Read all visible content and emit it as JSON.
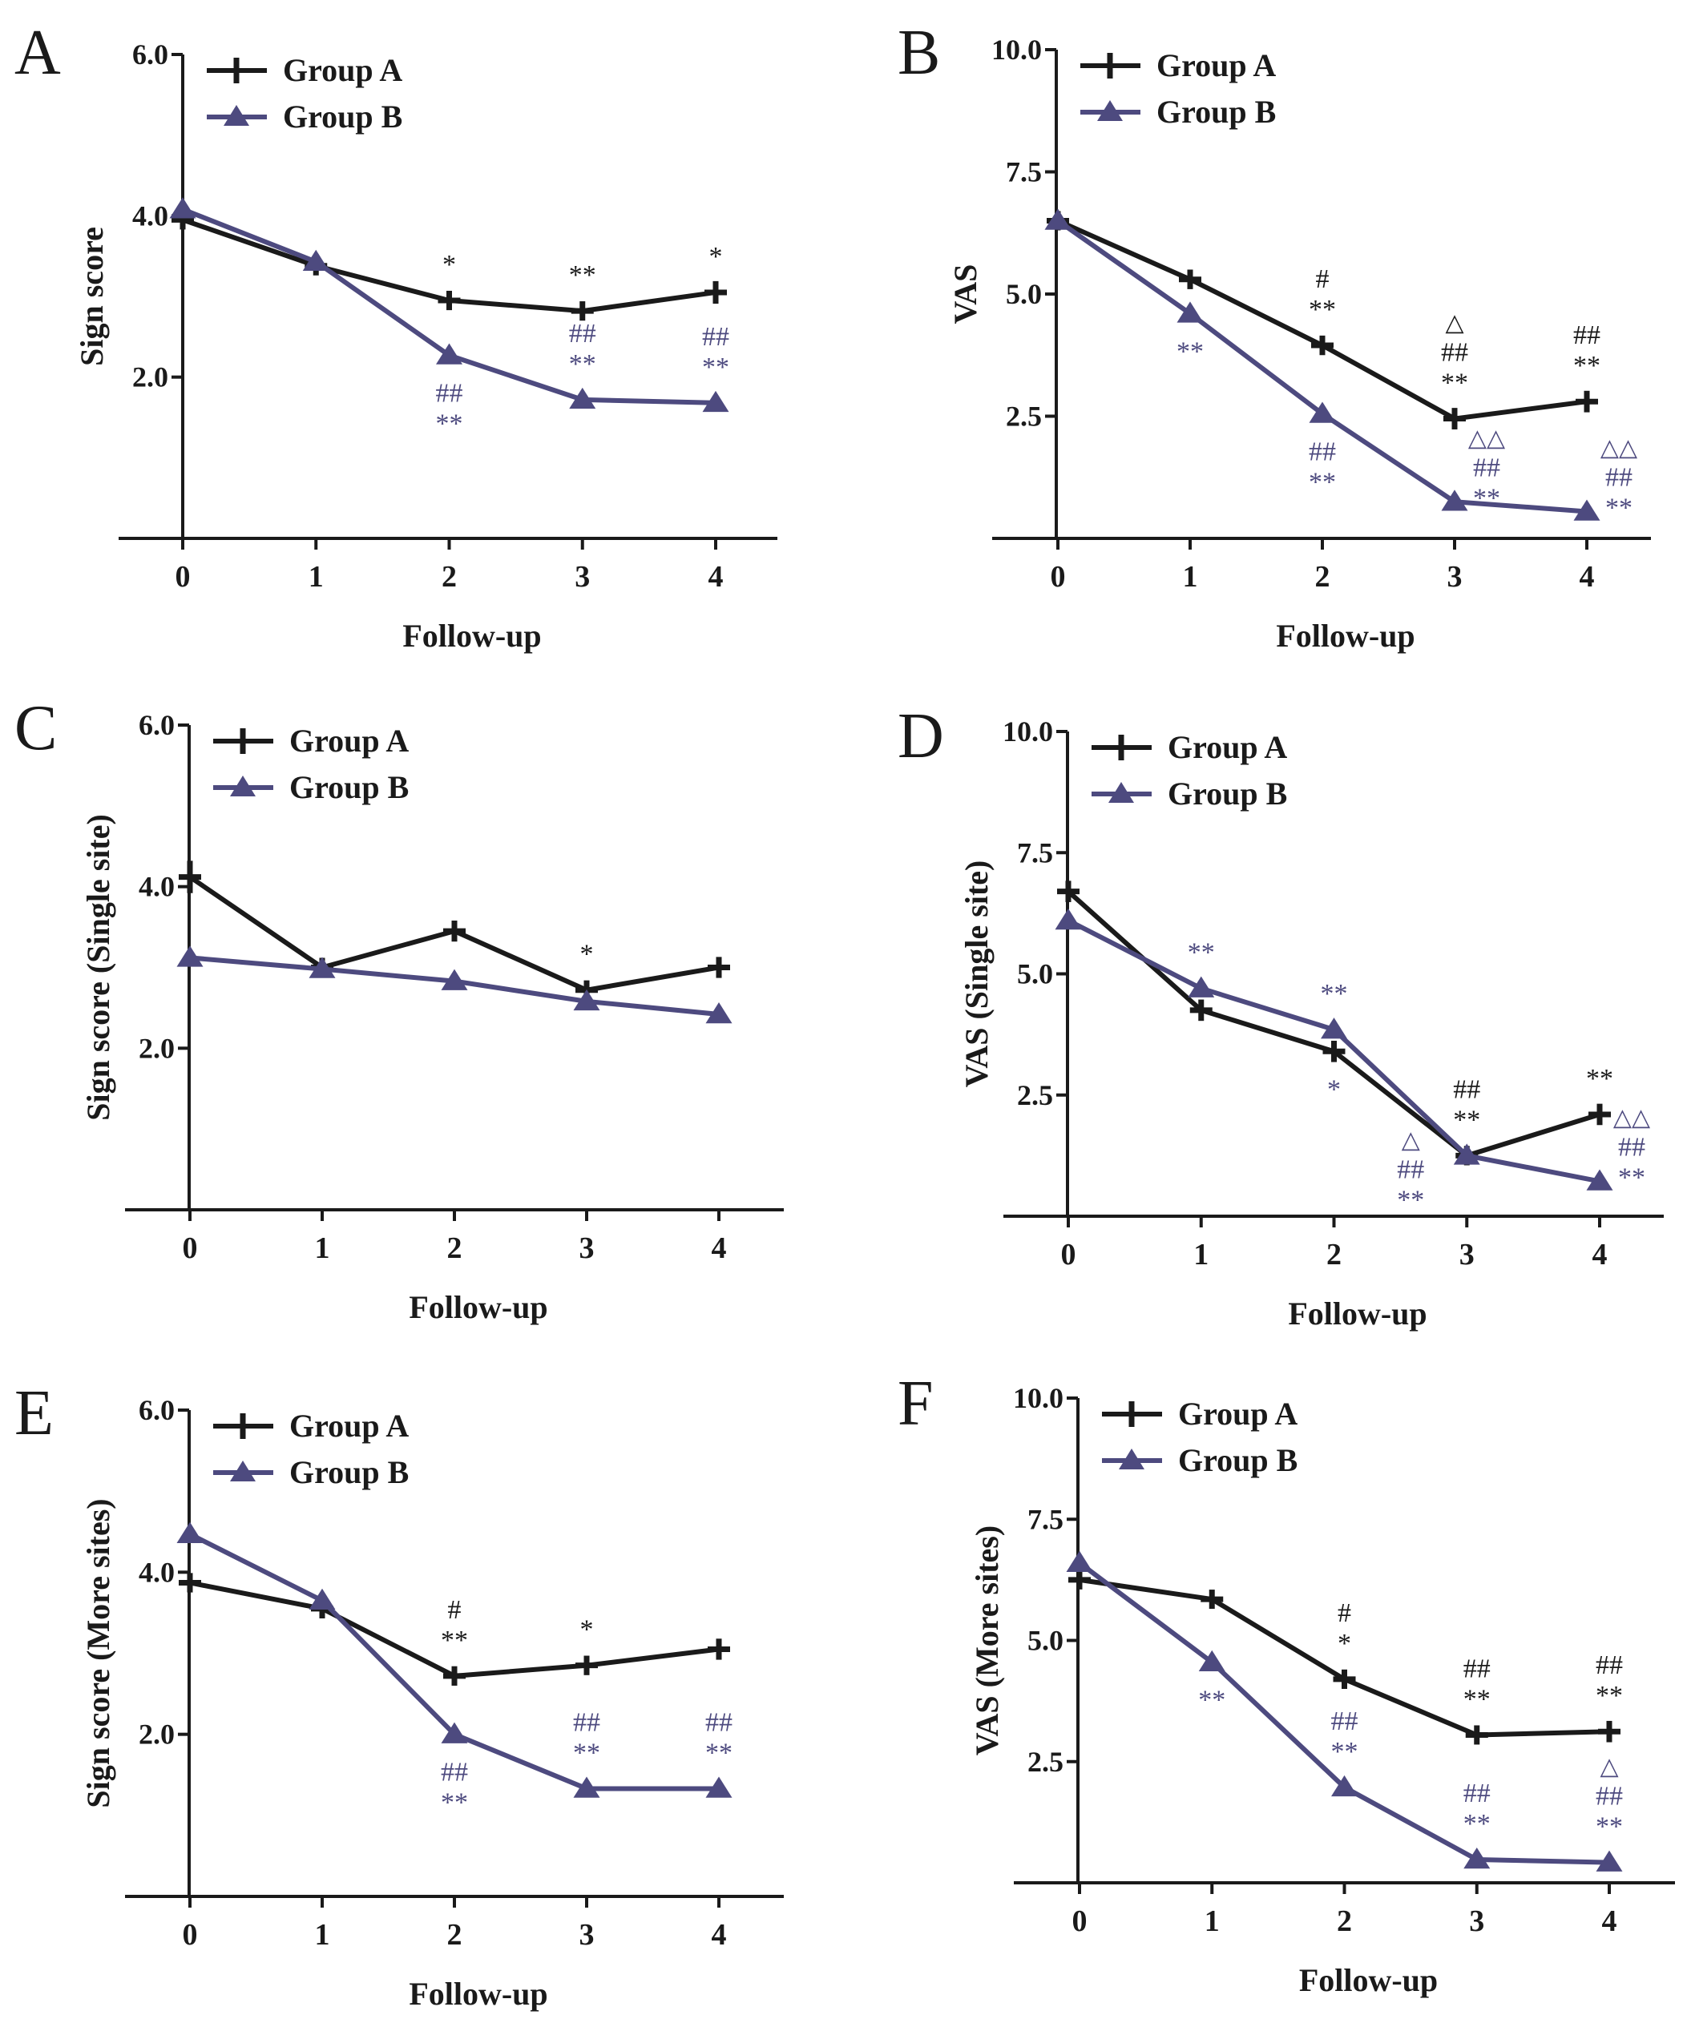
{
  "figure": {
    "colors": {
      "group_a": "#1a1a1a",
      "group_b": "#4d4a7f"
    }
  },
  "chart_data": [
    {
      "id": "A",
      "type": "line",
      "panel_label": "A",
      "xlabel": "Follow-up",
      "ylabel": "Sign score",
      "x": [
        0,
        1,
        2,
        3,
        4
      ],
      "xticks": [
        "0",
        "1",
        "2",
        "3",
        "4"
      ],
      "ylim": [
        0,
        6.0
      ],
      "yticks": [
        "2.0",
        "4.0",
        "6.0"
      ],
      "ytick_values": [
        2.0,
        4.0,
        6.0
      ],
      "legend": [
        "Group A",
        "Group B"
      ],
      "legend_position": "top-left",
      "series": [
        {
          "name": "Group A",
          "marker": "plus",
          "values": [
            3.95,
            3.38,
            2.95,
            2.82,
            3.05
          ],
          "errors": [
            0.12,
            0.1,
            0.12,
            0.12,
            0.14
          ]
        },
        {
          "name": "Group B",
          "marker": "triangle",
          "values": [
            4.08,
            3.43,
            2.27,
            1.72,
            1.68
          ],
          "errors": [
            0,
            0,
            0,
            0,
            0
          ]
        }
      ],
      "annotations": [
        {
          "series": "Group A",
          "x": 2,
          "pos": "above",
          "lines": [
            "*"
          ]
        },
        {
          "series": "Group A",
          "x": 3,
          "pos": "above",
          "lines": [
            "**"
          ]
        },
        {
          "series": "Group A",
          "x": 4,
          "pos": "above",
          "lines": [
            "*"
          ]
        },
        {
          "series": "Group B",
          "x": 2,
          "pos": "below",
          "lines": [
            "##",
            "**"
          ]
        },
        {
          "series": "Group B",
          "x": 3,
          "pos": "above",
          "lines": [
            "##",
            "**"
          ]
        },
        {
          "series": "Group B",
          "x": 4,
          "pos": "above",
          "lines": [
            "##",
            "**"
          ]
        }
      ]
    },
    {
      "id": "B",
      "type": "line",
      "panel_label": "B",
      "xlabel": "Follow-up",
      "ylabel": "VAS",
      "x": [
        0,
        1,
        2,
        3,
        4
      ],
      "xticks": [
        "0",
        "1",
        "2",
        "3",
        "4"
      ],
      "ylim": [
        0,
        10.0
      ],
      "yticks": [
        "2.5",
        "5.0",
        "7.5",
        "10.0"
      ],
      "ytick_values": [
        2.5,
        5.0,
        7.5,
        10.0
      ],
      "legend": [
        "Group A",
        "Group B"
      ],
      "legend_position": "top-left",
      "series": [
        {
          "name": "Group A",
          "marker": "plus",
          "values": [
            6.5,
            5.3,
            3.95,
            2.45,
            2.8
          ],
          "errors": [
            0.15,
            0.2,
            0.2,
            0.22,
            0.22
          ]
        },
        {
          "name": "Group B",
          "marker": "triangle",
          "values": [
            6.5,
            4.6,
            2.55,
            0.75,
            0.55
          ],
          "errors": [
            0,
            0,
            0,
            0,
            0
          ]
        }
      ],
      "annotations": [
        {
          "series": "Group A",
          "x": 2,
          "pos": "above",
          "lines": [
            "#",
            "**"
          ]
        },
        {
          "series": "Group A",
          "x": 3,
          "pos": "above",
          "lines": [
            "△",
            "##",
            "**"
          ]
        },
        {
          "series": "Group A",
          "x": 4,
          "pos": "above",
          "lines": [
            "##",
            "**"
          ]
        },
        {
          "series": "Group B",
          "x": 1,
          "pos": "below",
          "lines": [
            "**"
          ]
        },
        {
          "series": "Group B",
          "x": 2,
          "pos": "below",
          "lines": [
            "##",
            "**"
          ]
        },
        {
          "series": "Group B",
          "x": 3,
          "pos": "above-right",
          "lines": [
            "△△",
            "##",
            "**"
          ]
        },
        {
          "series": "Group B",
          "x": 4,
          "pos": "above-right",
          "lines": [
            "△△",
            "##",
            "**"
          ]
        }
      ]
    },
    {
      "id": "C",
      "type": "line",
      "panel_label": "C",
      "xlabel": "Follow-up",
      "ylabel": "Sign score (Single site)",
      "x": [
        0,
        1,
        2,
        3,
        4
      ],
      "xticks": [
        "0",
        "1",
        "2",
        "3",
        "4"
      ],
      "ylim": [
        0,
        6.0
      ],
      "yticks": [
        "2.0",
        "4.0",
        "6.0"
      ],
      "ytick_values": [
        2.0,
        4.0,
        6.0
      ],
      "legend": [
        "Group A",
        "Group B"
      ],
      "legend_position": "top-left",
      "series": [
        {
          "name": "Group A",
          "marker": "plus",
          "values": [
            4.12,
            3.0,
            3.45,
            2.72,
            3.0
          ],
          "errors": [
            0.2,
            0.1,
            0.13,
            0.12,
            0.13
          ]
        },
        {
          "name": "Group B",
          "marker": "triangle",
          "values": [
            3.12,
            2.98,
            2.83,
            2.58,
            2.42
          ],
          "errors": [
            0,
            0,
            0,
            0,
            0
          ]
        }
      ],
      "annotations": [
        {
          "series": "Group A",
          "x": 3,
          "pos": "above",
          "lines": [
            "*"
          ]
        }
      ]
    },
    {
      "id": "D",
      "type": "line",
      "panel_label": "D",
      "xlabel": "Follow-up",
      "ylabel": "VAS (Single site)",
      "x": [
        0,
        1,
        2,
        3,
        4
      ],
      "xticks": [
        "0",
        "1",
        "2",
        "3",
        "4"
      ],
      "ylim": [
        0,
        10.0
      ],
      "yticks": [
        "2.5",
        "5.0",
        "7.5",
        "10.0"
      ],
      "ytick_values": [
        2.5,
        5.0,
        7.5,
        10.0
      ],
      "legend": [
        "Group A",
        "Group B"
      ],
      "legend_position": "top-left",
      "series": [
        {
          "name": "Group A",
          "marker": "plus",
          "values": [
            6.7,
            4.25,
            3.4,
            1.25,
            2.1
          ],
          "errors": [
            0.22,
            0.22,
            0.22,
            0.2,
            0.22
          ]
        },
        {
          "name": "Group B",
          "marker": "triangle",
          "values": [
            6.1,
            4.7,
            3.85,
            1.25,
            0.72
          ],
          "errors": [
            0,
            0,
            0,
            0,
            0
          ]
        }
      ],
      "annotations": [
        {
          "series": "Group A",
          "x": 3,
          "pos": "above",
          "lines": [
            "##",
            "**"
          ]
        },
        {
          "series": "Group A",
          "x": 4,
          "pos": "above",
          "lines": [
            "**"
          ]
        },
        {
          "series": "Group B",
          "x": 1,
          "pos": "above",
          "lines": [
            "**"
          ]
        },
        {
          "series": "Group B",
          "x": 2,
          "pos": "above",
          "lines": [
            "**"
          ]
        },
        {
          "series": "Group A",
          "x": 2,
          "pos": "below-blue",
          "lines": [
            "*"
          ]
        },
        {
          "series": "Group B",
          "x": 3,
          "pos": "below-left",
          "lines": [
            "△",
            "##",
            "**"
          ]
        },
        {
          "series": "Group B",
          "x": 4,
          "pos": "above-right",
          "lines": [
            "△△",
            "##",
            "**"
          ]
        }
      ]
    },
    {
      "id": "E",
      "type": "line",
      "panel_label": "E",
      "xlabel": "Follow-up",
      "ylabel": "Sign score (More sites)",
      "x": [
        0,
        1,
        2,
        3,
        4
      ],
      "xticks": [
        "0",
        "1",
        "2",
        "3",
        "4"
      ],
      "ylim": [
        0,
        6.0
      ],
      "yticks": [
        "2.0",
        "4.0",
        "6.0"
      ],
      "ytick_values": [
        2.0,
        4.0,
        6.0
      ],
      "legend": [
        "Group A",
        "Group B"
      ],
      "legend_position": "top-left",
      "series": [
        {
          "name": "Group A",
          "marker": "plus",
          "values": [
            3.87,
            3.55,
            2.72,
            2.85,
            3.05
          ],
          "errors": [
            0.12,
            0.12,
            0.12,
            0.12,
            0.13
          ]
        },
        {
          "name": "Group B",
          "marker": "triangle",
          "values": [
            4.47,
            3.65,
            2.0,
            1.33,
            1.33
          ],
          "errors": [
            0,
            0,
            0,
            0,
            0
          ]
        }
      ],
      "annotations": [
        {
          "series": "Group A",
          "x": 2,
          "pos": "above",
          "lines": [
            "#",
            "**"
          ]
        },
        {
          "series": "Group A",
          "x": 3,
          "pos": "above",
          "lines": [
            "*"
          ]
        },
        {
          "series": "Group B",
          "x": 2,
          "pos": "below",
          "lines": [
            "##",
            "**"
          ]
        },
        {
          "series": "Group B",
          "x": 3,
          "pos": "above",
          "lines": [
            "##",
            "**"
          ]
        },
        {
          "series": "Group B",
          "x": 4,
          "pos": "above",
          "lines": [
            "##",
            "**"
          ]
        }
      ]
    },
    {
      "id": "F",
      "type": "line",
      "panel_label": "F",
      "xlabel": "Follow-up",
      "ylabel": "VAS (More sites)",
      "x": [
        0,
        1,
        2,
        3,
        4
      ],
      "xticks": [
        "0",
        "1",
        "2",
        "3",
        "4"
      ],
      "ylim": [
        0,
        10.0
      ],
      "yticks": [
        "2.5",
        "5.0",
        "7.5",
        "10.0"
      ],
      "ytick_values": [
        2.5,
        5.0,
        7.5,
        10.0
      ],
      "legend": [
        "Group A",
        "Group B"
      ],
      "legend_position": "top-left",
      "series": [
        {
          "name": "Group A",
          "marker": "plus",
          "values": [
            6.25,
            5.85,
            4.2,
            3.05,
            3.12
          ],
          "errors": [
            0.18,
            0.18,
            0.2,
            0.18,
            0.22
          ]
        },
        {
          "name": "Group B",
          "marker": "triangle",
          "values": [
            6.6,
            4.55,
            1.97,
            0.48,
            0.42
          ],
          "errors": [
            0,
            0,
            0,
            0,
            0
          ]
        }
      ],
      "annotations": [
        {
          "series": "Group A",
          "x": 2,
          "pos": "above",
          "lines": [
            "#",
            "*"
          ]
        },
        {
          "series": "Group A",
          "x": 3,
          "pos": "above",
          "lines": [
            "##",
            "**"
          ]
        },
        {
          "series": "Group A",
          "x": 4,
          "pos": "above",
          "lines": [
            "##",
            "**"
          ]
        },
        {
          "series": "Group B",
          "x": 1,
          "pos": "below",
          "lines": [
            "**"
          ]
        },
        {
          "series": "Group B",
          "x": 2,
          "pos": "above",
          "lines": [
            "##",
            "**"
          ]
        },
        {
          "series": "Group B",
          "x": 3,
          "pos": "above",
          "lines": [
            "##",
            "**"
          ]
        },
        {
          "series": "Group B",
          "x": 4,
          "pos": "above",
          "lines": [
            "△",
            "##",
            "**"
          ]
        }
      ]
    }
  ]
}
